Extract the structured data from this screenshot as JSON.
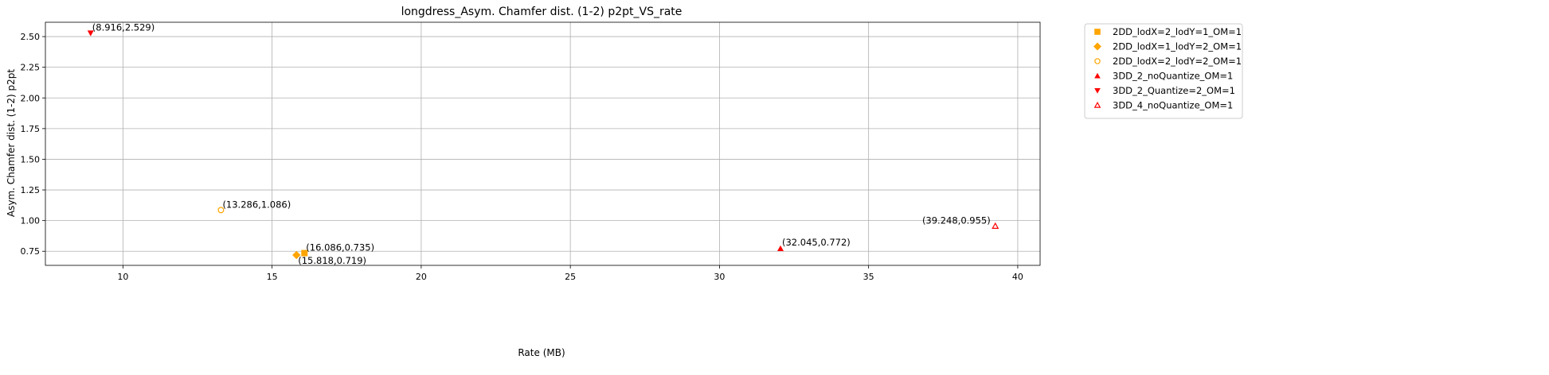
{
  "chart_data": {
    "type": "scatter",
    "title": "longdress_Asym. Chamfer dist. (1-2) p2pt_VS_rate",
    "xlabel": "Rate (MB)",
    "ylabel": "Asym. Chamfer dist. (1-2) p2pt",
    "xlim": [
      7.4,
      40.75
    ],
    "ylim": [
      0.635,
      2.617
    ],
    "xticks": [
      10,
      15,
      20,
      25,
      30,
      35,
      40
    ],
    "yticks": [
      0.75,
      1.0,
      1.25,
      1.5,
      1.75,
      2.0,
      2.25,
      2.5
    ],
    "xtick_labels": [
      "10",
      "15",
      "20",
      "25",
      "30",
      "35",
      "40"
    ],
    "ytick_labels": [
      "0.75",
      "1.00",
      "1.25",
      "1.50",
      "1.75",
      "2.00",
      "2.25",
      "2.50"
    ],
    "grid": true,
    "legend_position": "outside-top-right",
    "series": [
      {
        "name": "2DD_lodX=2_lodY=1_OM=1",
        "marker": "square",
        "color": "#ffa500",
        "filled": true,
        "points": [
          {
            "x": 16.086,
            "y": 0.735,
            "label": "(16.086,0.735)"
          }
        ]
      },
      {
        "name": "2DD_lodX=1_lodY=2_OM=1",
        "marker": "diamond",
        "color": "#ffa500",
        "filled": true,
        "points": [
          {
            "x": 15.818,
            "y": 0.719,
            "label": "(15.818,0.719)"
          }
        ]
      },
      {
        "name": "2DD_lodX=2_lodY=2_OM=1",
        "marker": "octagon",
        "color": "#ffa500",
        "filled": false,
        "points": [
          {
            "x": 13.286,
            "y": 1.086,
            "label": "(13.286,1.086)"
          }
        ]
      },
      {
        "name": "3DD_2_noQuantize_OM=1",
        "marker": "triangle-up",
        "color": "#ff0000",
        "filled": true,
        "points": [
          {
            "x": 32.045,
            "y": 0.772,
            "label": "(32.045,0.772)"
          }
        ]
      },
      {
        "name": "3DD_2_Quantize=2_OM=1",
        "marker": "triangle-down",
        "color": "#ff0000",
        "filled": true,
        "points": [
          {
            "x": 8.916,
            "y": 2.529,
            "label": "(8.916,2.529)"
          }
        ]
      },
      {
        "name": "3DD_4_noQuantize_OM=1",
        "marker": "triangle-up",
        "color": "#ff0000",
        "filled": false,
        "points": [
          {
            "x": 39.248,
            "y": 0.955,
            "label": "(39.248,0.955)"
          }
        ]
      }
    ]
  }
}
